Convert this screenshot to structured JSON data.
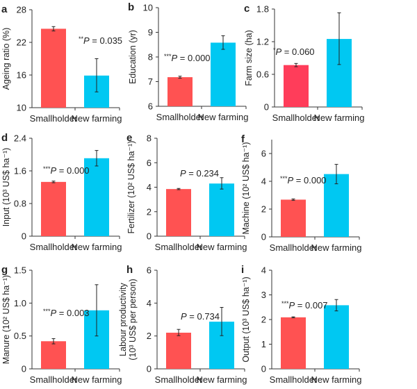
{
  "chart_data": [
    {
      "panel": "a",
      "type": "bar",
      "categories": [
        "Smallholder",
        "New farming"
      ],
      "values": [
        24.5,
        15.9
      ],
      "error_low": [
        24.1,
        12.9
      ],
      "error_high": [
        24.9,
        19.0
      ],
      "ylabel": "Ageing ratio (%)",
      "ylim": [
        10,
        28
      ],
      "yticks": [
        "10",
        "16",
        "22",
        "28"
      ],
      "annotation": {
        "stars": "**",
        "p": "P",
        "text": " = 0.035"
      },
      "colors": [
        "#FF5252",
        "#00C8F2"
      ]
    },
    {
      "panel": "b",
      "type": "bar",
      "categories": [
        "Smallholder",
        "New farming"
      ],
      "values": [
        7.18,
        8.58
      ],
      "error_low": [
        7.14,
        8.31
      ],
      "error_high": [
        7.22,
        8.86
      ],
      "ylabel": "Education (yr)",
      "ylim": [
        6,
        10
      ],
      "yticks": [
        "6",
        "7",
        "8",
        "9",
        "10"
      ],
      "annotation": {
        "stars": "***",
        "p": "P",
        "text": " = 0.000"
      },
      "colors": [
        "#FF5252",
        "#00C8F2"
      ]
    },
    {
      "panel": "c",
      "type": "bar",
      "categories": [
        "Smallholder",
        "New farming"
      ],
      "values": [
        0.77,
        1.25
      ],
      "error_low": [
        0.74,
        0.78
      ],
      "error_high": [
        0.8,
        1.73
      ],
      "ylabel": "Farm size (ha)",
      "ylim": [
        0,
        1.8
      ],
      "yticks": [
        "0",
        "0.6",
        "1.2",
        "1.8"
      ],
      "annotation": {
        "stars": "*",
        "p": "P",
        "text": " = 0.060"
      },
      "colors": [
        "#FF3D5A",
        "#00C8F2"
      ]
    },
    {
      "panel": "d",
      "type": "bar",
      "categories": [
        "Smallholder",
        "New farming"
      ],
      "values": [
        1.33,
        1.91
      ],
      "error_low": [
        1.31,
        1.72
      ],
      "error_high": [
        1.35,
        2.1
      ],
      "ylabel": "Input (10³ US$ ha⁻¹)",
      "ylim": [
        0,
        2.4
      ],
      "yticks": [
        "0",
        "0.8",
        "1.6",
        "2.4"
      ],
      "annotation": {
        "stars": "***",
        "p": "P",
        "text": " = 0.000"
      },
      "colors": [
        "#FF5252",
        "#00C8F2"
      ]
    },
    {
      "panel": "e",
      "type": "bar",
      "categories": [
        "Smallholder",
        "New farming"
      ],
      "values": [
        3.85,
        4.3
      ],
      "error_low": [
        3.8,
        3.85
      ],
      "error_high": [
        3.9,
        4.78
      ],
      "ylabel": "Fertilizer (10² US$ ha⁻¹)",
      "ylim": [
        0,
        8
      ],
      "yticks": [
        "0",
        "2",
        "4",
        "6",
        "8"
      ],
      "annotation": {
        "stars": "",
        "p": "P",
        "text": " = 0.234"
      },
      "colors": [
        "#FF5252",
        "#00C8F2"
      ]
    },
    {
      "panel": "f",
      "type": "bar",
      "categories": [
        "Smallholder",
        "New farming"
      ],
      "values": [
        2.68,
        4.52
      ],
      "error_low": [
        2.63,
        3.82
      ],
      "error_high": [
        2.73,
        5.22
      ],
      "ylabel": "Machine (10² US$ ha⁻¹)",
      "ylim": [
        0,
        7
      ],
      "yticks": [
        "0",
        "2",
        "4",
        "6"
      ],
      "annotation": {
        "stars": "***",
        "p": "P",
        "text": " = 0.000"
      },
      "colors": [
        "#FF5252",
        "#00C8F2"
      ]
    },
    {
      "panel": "g",
      "type": "bar",
      "categories": [
        "Smallholder",
        "New farming"
      ],
      "values": [
        0.42,
        0.89
      ],
      "error_low": [
        0.38,
        0.5
      ],
      "error_high": [
        0.46,
        1.28
      ],
      "ylabel": "Manure (10² US$ ha⁻¹)",
      "ylim": [
        0,
        1.5
      ],
      "yticks": [
        "0",
        "0.5",
        "1.0",
        "1.5"
      ],
      "annotation": {
        "stars": "***",
        "p": "P",
        "text": " = 0.003"
      },
      "colors": [
        "#FF5252",
        "#00C8F2"
      ]
    },
    {
      "panel": "h",
      "type": "bar",
      "categories": [
        "Smallholder",
        "New farming"
      ],
      "values": [
        2.2,
        2.87
      ],
      "error_low": [
        2.02,
        2.02
      ],
      "error_high": [
        2.4,
        3.74
      ],
      "ylabel": [
        "Labour productivity",
        "(10³ US$ per person)"
      ],
      "ylim": [
        0,
        6
      ],
      "yticks": [
        "0",
        "2",
        "4",
        "6"
      ],
      "annotation": {
        "stars": "",
        "p": "P",
        "text": " = 0.734"
      },
      "colors": [
        "#FF5252",
        "#00C8F2"
      ]
    },
    {
      "panel": "i",
      "type": "bar",
      "categories": [
        "Smallholder",
        "New farming"
      ],
      "values": [
        2.09,
        2.58
      ],
      "error_low": [
        2.07,
        2.35
      ],
      "error_high": [
        2.11,
        2.81
      ],
      "ylabel": "Output (10³ US$ ha⁻¹)",
      "ylim": [
        0,
        4
      ],
      "yticks": [
        "0",
        "1",
        "2",
        "3",
        "4"
      ],
      "annotation": {
        "stars": "***",
        "p": "P",
        "text": " = 0.007"
      },
      "colors": [
        "#FF5252",
        "#00C8F2"
      ]
    }
  ]
}
